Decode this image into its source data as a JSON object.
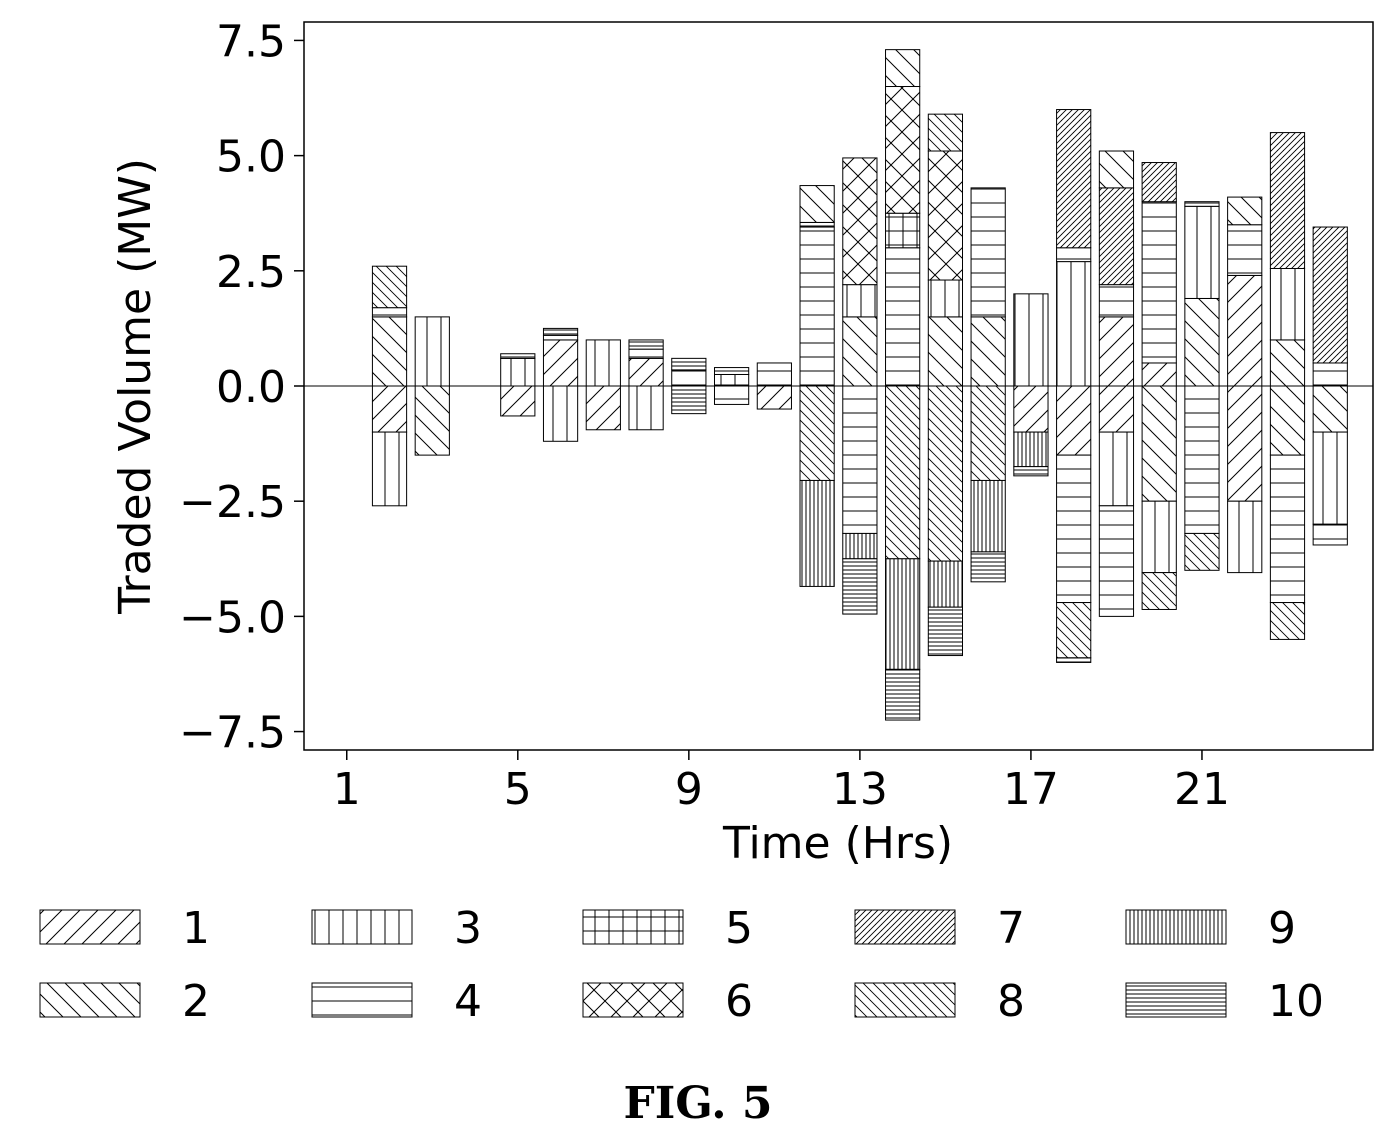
{
  "figure_caption": "FIG. 5",
  "chart_data": {
    "type": "bar",
    "subtype": "stacked-diverging",
    "xlabel": "Time (Hrs)",
    "ylabel": "Traded Volume (MW)",
    "xlim": [
      0,
      25
    ],
    "ylim": [
      -7.9,
      7.9
    ],
    "xticks": [
      1,
      5,
      9,
      13,
      17,
      21
    ],
    "xtick_labels": [
      "1",
      "5",
      "9",
      "13",
      "17",
      "21"
    ],
    "yticks": [
      7.5,
      5.0,
      2.5,
      0.0,
      -2.5,
      -5.0,
      -7.5
    ],
    "ytick_labels": [
      "7.5",
      "5.0",
      "2.5",
      "0.0",
      "−2.5",
      "−5.0",
      "−7.5"
    ],
    "grid": false,
    "legend_position": "bottom",
    "legend": [
      {
        "label": "1",
        "hatch": "/"
      },
      {
        "label": "2",
        "hatch": "\\"
      },
      {
        "label": "3",
        "hatch": "|"
      },
      {
        "label": "4",
        "hatch": "-"
      },
      {
        "label": "5",
        "hatch": "+"
      },
      {
        "label": "6",
        "hatch": "x"
      },
      {
        "label": "7",
        "hatch": "///"
      },
      {
        "label": "8",
        "hatch": "\\\\"
      },
      {
        "label": "9",
        "hatch": "|||"
      },
      {
        "label": "10",
        "hatch": "---"
      }
    ],
    "bars": [
      {
        "hour": 2,
        "positive": [
          {
            "s": "2",
            "v": 1.5
          },
          {
            "s": "4",
            "v": 0.2
          },
          {
            "s": "8",
            "v": 0.9
          }
        ],
        "negative": [
          {
            "s": "1",
            "v": 1.0
          },
          {
            "s": "3",
            "v": 1.6
          }
        ]
      },
      {
        "hour": 3,
        "positive": [
          {
            "s": "3",
            "v": 1.5
          }
        ],
        "negative": [
          {
            "s": "2",
            "v": 1.5
          }
        ]
      },
      {
        "hour": 5,
        "positive": [
          {
            "s": "3",
            "v": 0.6
          },
          {
            "s": "4",
            "v": 0.1
          }
        ],
        "negative": [
          {
            "s": "1",
            "v": 0.65
          }
        ]
      },
      {
        "hour": 6,
        "positive": [
          {
            "s": "1",
            "v": 1.0
          },
          {
            "s": "4",
            "v": 0.1
          },
          {
            "s": "10",
            "v": 0.15
          }
        ],
        "negative": [
          {
            "s": "3",
            "v": 1.2
          }
        ]
      },
      {
        "hour": 7,
        "positive": [
          {
            "s": "3",
            "v": 1.0
          }
        ],
        "negative": [
          {
            "s": "1",
            "v": 0.95
          }
        ]
      },
      {
        "hour": 8,
        "positive": [
          {
            "s": "1",
            "v": 0.6
          },
          {
            "s": "4",
            "v": 0.2
          },
          {
            "s": "10",
            "v": 0.2
          }
        ],
        "negative": [
          {
            "s": "3",
            "v": 0.95
          }
        ]
      },
      {
        "hour": 9,
        "positive": [
          {
            "s": "4",
            "v": 0.35
          },
          {
            "s": "10",
            "v": 0.25
          }
        ],
        "negative": [
          {
            "s": "10",
            "v": 0.6
          }
        ]
      },
      {
        "hour": 10,
        "positive": [
          {
            "s": "5",
            "v": 0.25
          },
          {
            "s": "4",
            "v": 0.15
          }
        ],
        "negative": [
          {
            "s": "4",
            "v": 0.4
          }
        ]
      },
      {
        "hour": 11,
        "positive": [
          {
            "s": "4",
            "v": 0.5
          }
        ],
        "negative": [
          {
            "s": "1",
            "v": 0.5
          }
        ]
      },
      {
        "hour": 12,
        "positive": [
          {
            "s": "4",
            "v": 3.45
          },
          {
            "s": "10",
            "v": 0.1
          },
          {
            "s": "2",
            "v": 0.8
          }
        ],
        "negative": [
          {
            "s": "8",
            "v": 2.05
          },
          {
            "s": "9",
            "v": 2.3
          }
        ]
      },
      {
        "hour": 13,
        "positive": [
          {
            "s": "2",
            "v": 1.5
          },
          {
            "s": "3",
            "v": 0.7
          },
          {
            "s": "6",
            "v": 2.75
          }
        ],
        "negative": [
          {
            "s": "4",
            "v": 3.2
          },
          {
            "s": "9",
            "v": 0.55
          },
          {
            "s": "10",
            "v": 1.2
          }
        ]
      },
      {
        "hour": 14,
        "positive": [
          {
            "s": "4",
            "v": 3.0
          },
          {
            "s": "5",
            "v": 0.75
          },
          {
            "s": "6",
            "v": 2.75
          },
          {
            "s": "2",
            "v": 0.8
          }
        ],
        "negative": [
          {
            "s": "8",
            "v": 3.75
          },
          {
            "s": "9",
            "v": 2.4
          },
          {
            "s": "10",
            "v": 1.1
          }
        ]
      },
      {
        "hour": 15,
        "positive": [
          {
            "s": "2",
            "v": 1.5
          },
          {
            "s": "3",
            "v": 0.8
          },
          {
            "s": "6",
            "v": 2.8
          },
          {
            "s": "8",
            "v": 0.8
          }
        ],
        "negative": [
          {
            "s": "8",
            "v": 3.8
          },
          {
            "s": "9",
            "v": 1.0
          },
          {
            "s": "10",
            "v": 1.05
          }
        ]
      },
      {
        "hour": 16,
        "positive": [
          {
            "s": "2",
            "v": 1.5
          },
          {
            "s": "4",
            "v": 2.8
          }
        ],
        "negative": [
          {
            "s": "8",
            "v": 2.05
          },
          {
            "s": "9",
            "v": 1.55
          },
          {
            "s": "10",
            "v": 0.65
          }
        ]
      },
      {
        "hour": 17,
        "positive": [
          {
            "s": "3",
            "v": 2.0
          }
        ],
        "negative": [
          {
            "s": "1",
            "v": 1.0
          },
          {
            "s": "9",
            "v": 0.75
          },
          {
            "s": "10",
            "v": 0.2
          }
        ]
      },
      {
        "hour": 18,
        "positive": [
          {
            "s": "3",
            "v": 2.7
          },
          {
            "s": "4",
            "v": 0.3
          },
          {
            "s": "7",
            "v": 3.0
          }
        ],
        "negative": [
          {
            "s": "1",
            "v": 1.5
          },
          {
            "s": "4",
            "v": 3.2
          },
          {
            "s": "8",
            "v": 1.2
          },
          {
            "s": "10",
            "v": 0.1
          }
        ]
      },
      {
        "hour": 19,
        "positive": [
          {
            "s": "1",
            "v": 1.5
          },
          {
            "s": "4",
            "v": 0.7
          },
          {
            "s": "7",
            "v": 2.1
          },
          {
            "s": "2",
            "v": 0.8
          }
        ],
        "negative": [
          {
            "s": "1",
            "v": 1.0
          },
          {
            "s": "3",
            "v": 1.6
          },
          {
            "s": "4",
            "v": 2.4
          }
        ]
      },
      {
        "hour": 20,
        "positive": [
          {
            "s": "1",
            "v": 0.5
          },
          {
            "s": "4",
            "v": 3.5
          },
          {
            "s": "7",
            "v": 0.85
          }
        ],
        "negative": [
          {
            "s": "2",
            "v": 2.5
          },
          {
            "s": "3",
            "v": 1.55
          },
          {
            "s": "8",
            "v": 0.8
          }
        ]
      },
      {
        "hour": 21,
        "positive": [
          {
            "s": "2",
            "v": 1.9
          },
          {
            "s": "3",
            "v": 2.0
          },
          {
            "s": "4",
            "v": 0.1
          }
        ],
        "negative": [
          {
            "s": "4",
            "v": 3.2
          },
          {
            "s": "8",
            "v": 0.8
          }
        ]
      },
      {
        "hour": 22,
        "positive": [
          {
            "s": "1",
            "v": 2.4
          },
          {
            "s": "4",
            "v": 1.1
          },
          {
            "s": "2",
            "v": 0.6
          }
        ],
        "negative": [
          {
            "s": "1",
            "v": 2.5
          },
          {
            "s": "3",
            "v": 1.55
          }
        ]
      },
      {
        "hour": 23,
        "positive": [
          {
            "s": "2",
            "v": 1.0
          },
          {
            "s": "3",
            "v": 1.55
          },
          {
            "s": "7",
            "v": 2.95
          }
        ],
        "negative": [
          {
            "s": "2",
            "v": 1.5
          },
          {
            "s": "4",
            "v": 3.2
          },
          {
            "s": "8",
            "v": 0.8
          }
        ]
      },
      {
        "hour": 24,
        "positive": [
          {
            "s": "4",
            "v": 0.5
          },
          {
            "s": "7",
            "v": 2.95
          }
        ],
        "negative": [
          {
            "s": "2",
            "v": 1.0
          },
          {
            "s": "3",
            "v": 2.0
          },
          {
            "s": "4",
            "v": 0.45
          }
        ]
      }
    ]
  }
}
